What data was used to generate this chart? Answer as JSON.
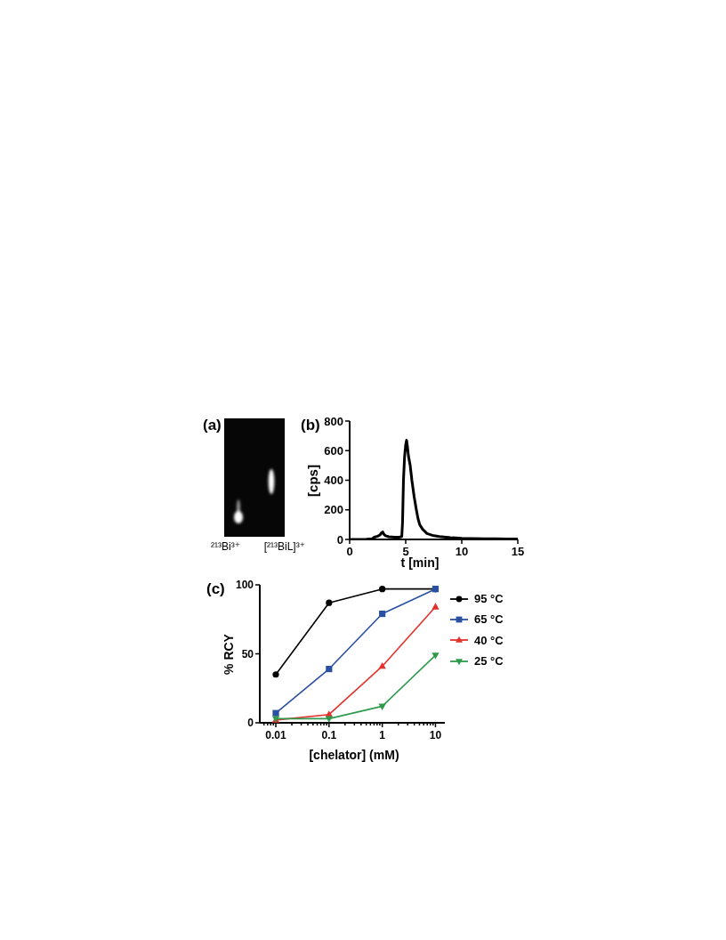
{
  "chart_data": [
    {
      "type": "other",
      "title": "(a)",
      "annotations": [
        "²¹³Bi³⁺",
        "[²¹³BiL]³⁺"
      ]
    },
    {
      "type": "line",
      "title": "(b)",
      "xlabel": "t [min]",
      "ylabel": "[cps]",
      "x": [
        0,
        0.5,
        1,
        1.5,
        2,
        2.2,
        2.5,
        2.7,
        2.85,
        2.95,
        3.05,
        3.2,
        3.5,
        4,
        4.4,
        4.65,
        4.72,
        4.8,
        4.9,
        5,
        5.08,
        5.15,
        5.25,
        5.4,
        5.55,
        5.75,
        5.95,
        6.1,
        6.25,
        6.5,
        6.9,
        7.5,
        8,
        9,
        10,
        11,
        12,
        13,
        14,
        15
      ],
      "series": [
        {
          "color": "#000000",
          "values": [
            0,
            0,
            0,
            2,
            5,
            15,
            22,
            30,
            45,
            50,
            35,
            25,
            18,
            15,
            15,
            20,
            120,
            400,
            560,
            640,
            670,
            630,
            560,
            500,
            400,
            290,
            200,
            140,
            100,
            70,
            40,
            25,
            20,
            12,
            8,
            6,
            5,
            4,
            3,
            3
          ]
        }
      ],
      "xlim": [
        0,
        15
      ],
      "xticks": [
        0,
        5,
        10,
        15
      ],
      "ylim": [
        0,
        800
      ],
      "yticks": [
        0,
        200,
        400,
        600,
        800
      ],
      "grid": false
    },
    {
      "type": "line",
      "title": "(c)",
      "xlabel": "[chelator] (mM)",
      "ylabel": "% RCY",
      "log": "x",
      "legend": "right",
      "x": [
        0.01,
        0.1,
        1,
        10
      ],
      "series": [
        {
          "name": "95 °C",
          "color": "#000000",
          "marker": "circle",
          "values": [
            35,
            87,
            97,
            97
          ]
        },
        {
          "name": "65 °C",
          "color": "#2b50a2",
          "marker": "square",
          "values": [
            7,
            39,
            79,
            97
          ]
        },
        {
          "name": "40 °C",
          "color": "#e5312b",
          "marker": "triangle",
          "values": [
            2,
            6,
            41,
            84
          ]
        },
        {
          "name": "25 °C",
          "color": "#2f9a4c",
          "marker": "triangle-down",
          "values": [
            3,
            3,
            12,
            49
          ]
        }
      ],
      "xlim": [
        0.005,
        15
      ],
      "xticks": [
        {
          "value": 0.006,
          "label": null
        },
        {
          "value": 0.007,
          "label": null
        },
        {
          "value": 0.008,
          "label": null
        },
        {
          "value": 0.009,
          "label": null
        },
        0.01,
        {
          "value": 0.02,
          "label": null
        },
        {
          "value": 0.03,
          "label": null
        },
        {
          "value": 0.04,
          "label": null
        },
        {
          "value": 0.05,
          "label": null
        },
        {
          "value": 0.06,
          "label": null
        },
        {
          "value": 0.07,
          "label": null
        },
        {
          "value": 0.08,
          "label": null
        },
        {
          "value": 0.09,
          "label": null
        },
        0.1,
        {
          "value": 0.2,
          "label": null
        },
        {
          "value": 0.3,
          "label": null
        },
        {
          "value": 0.4,
          "label": null
        },
        {
          "value": 0.5,
          "label": null
        },
        {
          "value": 0.6,
          "label": null
        },
        {
          "value": 0.7,
          "label": null
        },
        {
          "value": 0.8,
          "label": null
        },
        {
          "value": 0.9,
          "label": null
        },
        1,
        {
          "value": 2,
          "label": null
        },
        {
          "value": 3,
          "label": null
        },
        {
          "value": 4,
          "label": null
        },
        {
          "value": 5,
          "label": null
        },
        {
          "value": 6,
          "label": null
        },
        {
          "value": 7,
          "label": null
        },
        {
          "value": 8,
          "label": null
        },
        {
          "value": 9,
          "label": null
        },
        10
      ],
      "ylim": [
        0,
        100
      ],
      "yticks": [
        0,
        50,
        100
      ],
      "grid": false
    }
  ]
}
